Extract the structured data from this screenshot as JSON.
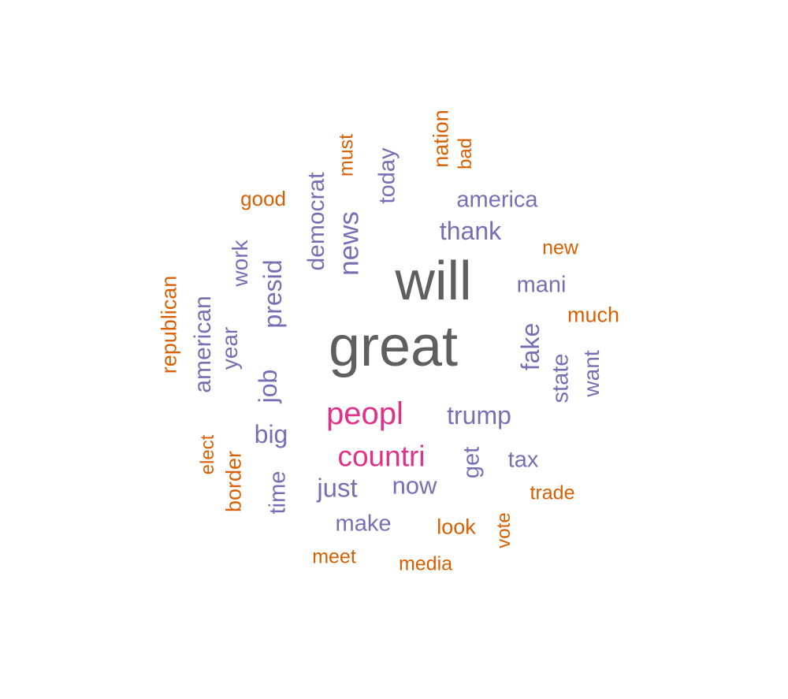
{
  "palette": {
    "gray": "#5f5f5f",
    "magenta": "#e0328a",
    "purple": "#7570b3",
    "orange": "#d95f02"
  },
  "words": [
    {
      "id": "will",
      "text": "will",
      "color": "gray"
    },
    {
      "id": "great",
      "text": "great",
      "color": "gray"
    },
    {
      "id": "peopl",
      "text": "peopl",
      "color": "magenta"
    },
    {
      "id": "countri",
      "text": "countri",
      "color": "magenta"
    },
    {
      "id": "trump",
      "text": "trump",
      "color": "purple"
    },
    {
      "id": "thank",
      "text": "thank",
      "color": "purple"
    },
    {
      "id": "america",
      "text": "america",
      "color": "purple"
    },
    {
      "id": "news",
      "text": "news",
      "color": "purple"
    },
    {
      "id": "democrat",
      "text": "democrat",
      "color": "purple"
    },
    {
      "id": "presid",
      "text": "presid",
      "color": "purple"
    },
    {
      "id": "today",
      "text": "today",
      "color": "purple"
    },
    {
      "id": "mani",
      "text": "mani",
      "color": "purple"
    },
    {
      "id": "fake",
      "text": "fake",
      "color": "purple"
    },
    {
      "id": "state",
      "text": "state",
      "color": "purple"
    },
    {
      "id": "want",
      "text": "want",
      "color": "purple"
    },
    {
      "id": "american",
      "text": "american",
      "color": "purple"
    },
    {
      "id": "year",
      "text": "year",
      "color": "purple"
    },
    {
      "id": "work",
      "text": "work",
      "color": "purple"
    },
    {
      "id": "job",
      "text": "job",
      "color": "purple"
    },
    {
      "id": "big",
      "text": "big",
      "color": "purple"
    },
    {
      "id": "just",
      "text": "just",
      "color": "purple"
    },
    {
      "id": "now",
      "text": "now",
      "color": "purple"
    },
    {
      "id": "get",
      "text": "get",
      "color": "purple"
    },
    {
      "id": "tax",
      "text": "tax",
      "color": "purple"
    },
    {
      "id": "make",
      "text": "make",
      "color": "purple"
    },
    {
      "id": "time",
      "text": "time",
      "color": "purple"
    },
    {
      "id": "nation",
      "text": "nation",
      "color": "orange"
    },
    {
      "id": "bad",
      "text": "bad",
      "color": "orange"
    },
    {
      "id": "must",
      "text": "must",
      "color": "orange"
    },
    {
      "id": "good",
      "text": "good",
      "color": "orange"
    },
    {
      "id": "new",
      "text": "new",
      "color": "orange"
    },
    {
      "id": "much",
      "text": "much",
      "color": "orange"
    },
    {
      "id": "republican",
      "text": "republican",
      "color": "orange"
    },
    {
      "id": "elect",
      "text": "elect",
      "color": "orange"
    },
    {
      "id": "border",
      "text": "border",
      "color": "orange"
    },
    {
      "id": "trade",
      "text": "trade",
      "color": "orange"
    },
    {
      "id": "vote",
      "text": "vote",
      "color": "orange"
    },
    {
      "id": "look",
      "text": "look",
      "color": "orange"
    },
    {
      "id": "meet",
      "text": "meet",
      "color": "orange"
    },
    {
      "id": "media",
      "text": "media",
      "color": "orange"
    }
  ]
}
